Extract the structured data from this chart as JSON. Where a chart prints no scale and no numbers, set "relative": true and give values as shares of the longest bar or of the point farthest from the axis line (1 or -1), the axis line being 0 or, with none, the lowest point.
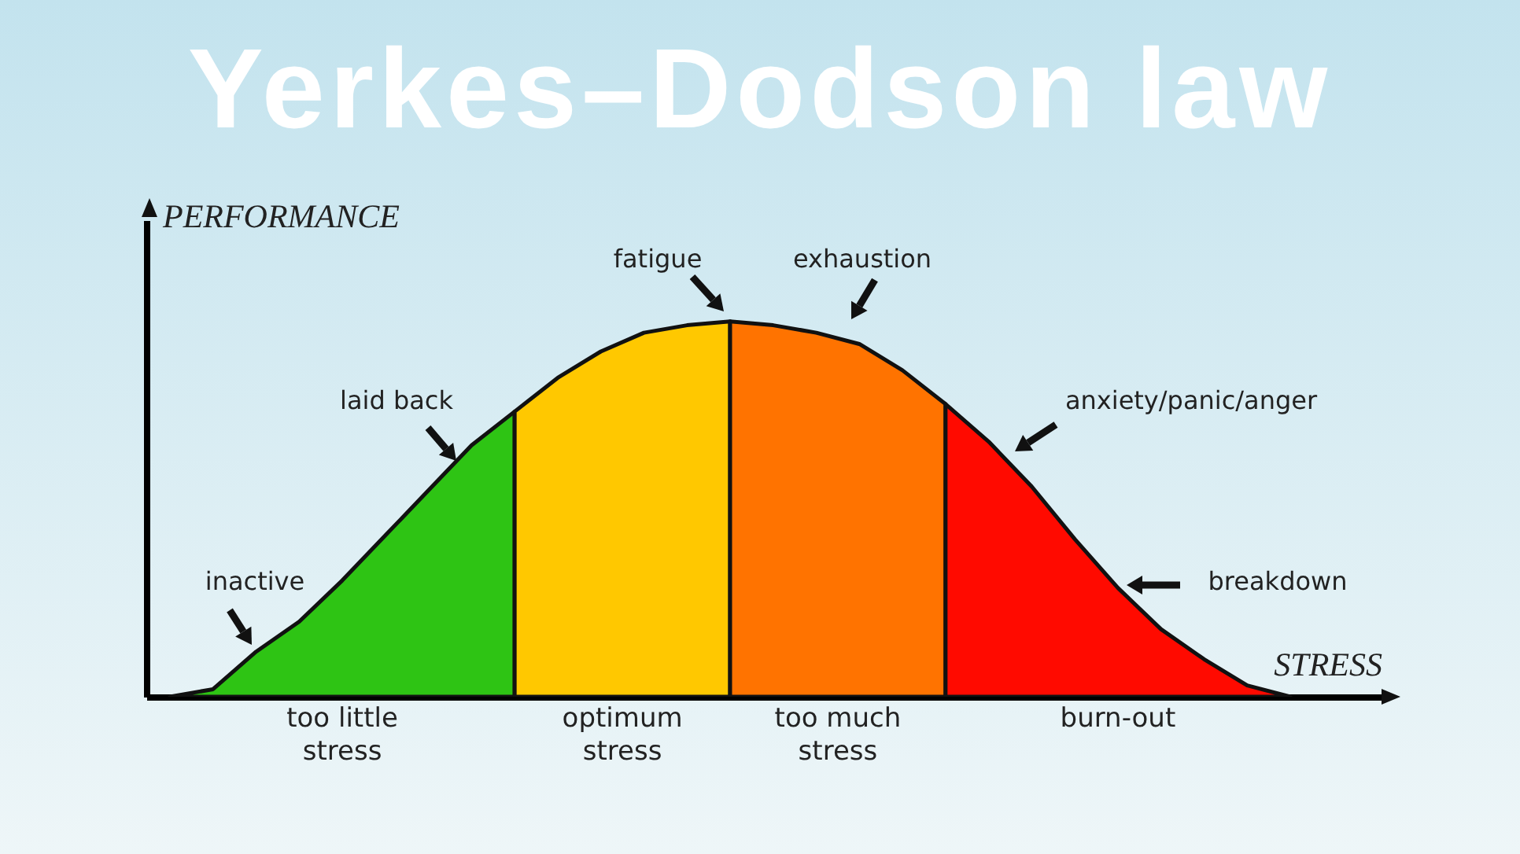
{
  "chart_data": {
    "type": "area",
    "title": "Yerkes–Dodson law",
    "xlabel": "STRESS",
    "ylabel": "PERFORMANCE",
    "relative": true,
    "categories": [
      null,
      null,
      null,
      null,
      null,
      null,
      null,
      null,
      null,
      null,
      null,
      null,
      null,
      null,
      null,
      null,
      null,
      null,
      null,
      null,
      null,
      null,
      null,
      null,
      null,
      null,
      null
    ],
    "series": [
      {
        "name": "too little stress",
        "color": "#2ec414",
        "values": [
          0,
          0.02,
          0.12,
          0.2,
          0.31,
          0.43,
          0.55,
          0.67,
          0.76,
          null,
          null,
          null,
          null,
          null,
          null,
          null,
          null,
          null,
          null,
          null,
          null,
          null,
          null,
          null,
          null,
          null,
          null
        ]
      },
      {
        "name": "optimum stress",
        "color": "#ffc800",
        "values": [
          null,
          null,
          null,
          null,
          null,
          null,
          null,
          null,
          0.76,
          0.85,
          0.92,
          0.97,
          0.99,
          1,
          null,
          null,
          null,
          null,
          null,
          null,
          null,
          null,
          null,
          null,
          null,
          null,
          null
        ]
      },
      {
        "name": "too much stress",
        "color": "#ff7300",
        "values": [
          null,
          null,
          null,
          null,
          null,
          null,
          null,
          null,
          null,
          null,
          null,
          null,
          null,
          1,
          0.99,
          0.97,
          0.94,
          0.87,
          0.78,
          null,
          null,
          null,
          null,
          null,
          null,
          null,
          null
        ]
      },
      {
        "name": "burn-out",
        "color": "#ff0a00",
        "values": [
          null,
          null,
          null,
          null,
          null,
          null,
          null,
          null,
          null,
          null,
          null,
          null,
          null,
          null,
          null,
          null,
          null,
          null,
          0.78,
          0.68,
          0.56,
          0.42,
          0.29,
          0.18,
          0.1,
          0.03,
          0
        ]
      }
    ],
    "annotations": [
      "inactive",
      "laid back",
      "fatigue",
      "exhaustion",
      "anxiety/panic/anger",
      "breakdown"
    ]
  }
}
